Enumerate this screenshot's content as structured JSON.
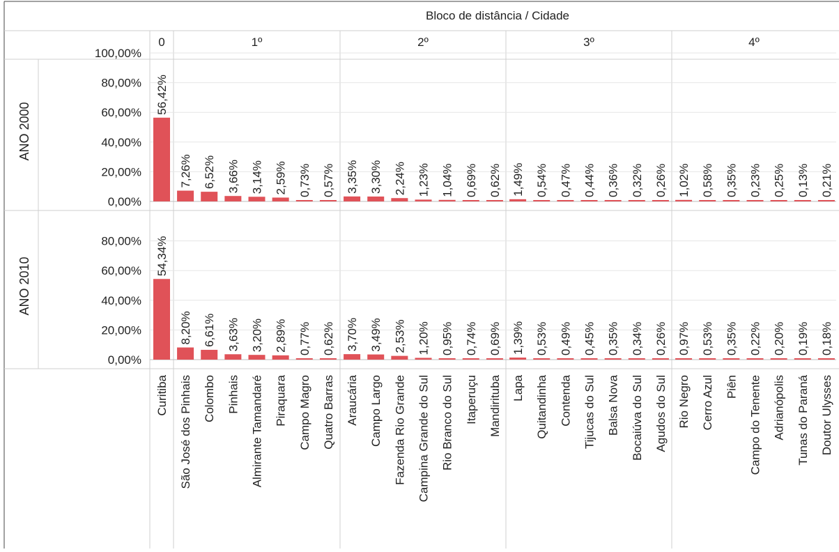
{
  "header": {
    "title": "Bloco de distância  /  Cidade"
  },
  "chart_data": {
    "type": "bar",
    "title": "Bloco de distância  /  Cidade",
    "groups": [
      {
        "label": "0",
        "categories": [
          "Curitiba"
        ]
      },
      {
        "label": "1º",
        "categories": [
          "São José dos Pinhais",
          "Colombo",
          "Pinhais",
          "Almirante Tamandaré",
          "Piraquara",
          "Campo Magro",
          "Quatro Barras"
        ]
      },
      {
        "label": "2º",
        "categories": [
          "Araucária",
          "Campo Largo",
          "Fazenda Rio Grande",
          "Campina Grande do Sul",
          "Rio Branco do Sul",
          "Itaperuçu",
          "Mandirituba"
        ]
      },
      {
        "label": "3º",
        "categories": [
          "Lapa",
          "Quitandinha",
          "Contenda",
          "Tijucas do Sul",
          "Balsa Nova",
          "Bocaiúva do Sul",
          "Agudos do Sul"
        ]
      },
      {
        "label": "4º",
        "categories": [
          "Rio Negro",
          "Cerro Azul",
          "Piên",
          "Campo do Tenente",
          "Adrianópolis",
          "Tunas do Paraná",
          "Doutor Ulysses"
        ]
      }
    ],
    "series": [
      {
        "name": "ANO 2000",
        "values": [
          56.42,
          7.26,
          6.52,
          3.66,
          3.14,
          2.59,
          0.73,
          0.57,
          3.35,
          3.3,
          2.24,
          1.23,
          1.04,
          0.69,
          0.62,
          1.49,
          0.54,
          0.47,
          0.44,
          0.36,
          0.32,
          0.26,
          1.02,
          0.58,
          0.35,
          0.23,
          0.25,
          0.13,
          0.21
        ],
        "labels": [
          "56,42%",
          "7,26%",
          "6,52%",
          "3,66%",
          "3,14%",
          "2,59%",
          "0,73%",
          "0,57%",
          "3,35%",
          "3,30%",
          "2,24%",
          "1,23%",
          "1,04%",
          "0,69%",
          "0,62%",
          "1,49%",
          "0,54%",
          "0,47%",
          "0,44%",
          "0,36%",
          "0,32%",
          "0,26%",
          "1,02%",
          "0,58%",
          "0,35%",
          "0,23%",
          "0,25%",
          "0,13%",
          "0,21%"
        ],
        "yticks": [
          "0,00%",
          "20,00%",
          "40,00%",
          "60,00%",
          "80,00%",
          "100,00%"
        ],
        "ytick_values": [
          0,
          20,
          40,
          60,
          80,
          100
        ]
      },
      {
        "name": "ANO 2010",
        "values": [
          54.34,
          8.2,
          6.61,
          3.63,
          3.2,
          2.89,
          0.77,
          0.62,
          3.7,
          3.49,
          2.53,
          1.2,
          0.95,
          0.74,
          0.69,
          1.39,
          0.53,
          0.49,
          0.45,
          0.35,
          0.34,
          0.26,
          0.97,
          0.53,
          0.35,
          0.22,
          0.2,
          0.19,
          0.18
        ],
        "labels": [
          "54,34%",
          "8,20%",
          "6,61%",
          "3,63%",
          "3,20%",
          "2,89%",
          "0,77%",
          "0,62%",
          "3,70%",
          "3,49%",
          "2,53%",
          "1,20%",
          "0,95%",
          "0,74%",
          "0,69%",
          "1,39%",
          "0,53%",
          "0,49%",
          "0,45%",
          "0,35%",
          "0,34%",
          "0,26%",
          "0,97%",
          "0,53%",
          "0,35%",
          "0,22%",
          "0,20%",
          "0,19%",
          "0,18%"
        ],
        "yticks": [
          "0,00%",
          "20,00%",
          "40,00%",
          "60,00%",
          "80,00%"
        ],
        "ytick_values": [
          0,
          20,
          40,
          60,
          80
        ]
      }
    ],
    "ylim": [
      0,
      100
    ],
    "grid": true,
    "bar_color": "#e05258"
  }
}
